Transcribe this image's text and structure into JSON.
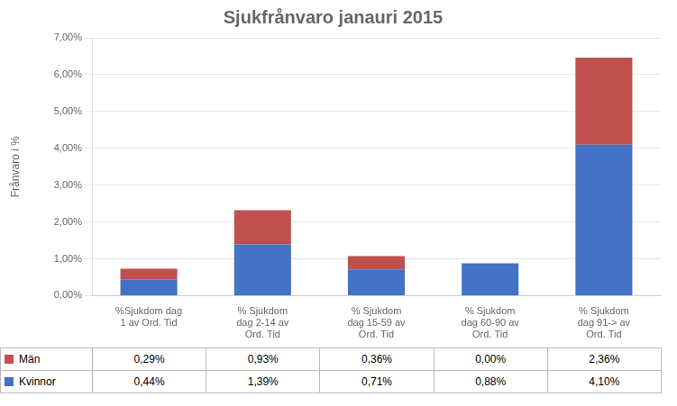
{
  "chart_data": {
    "type": "bar",
    "title": "Sjukfrånvaro janauri 2015",
    "ylabel": "Frånvaro i %",
    "categories": [
      "%Sjukdom dag\n1 av Ord. Tid",
      "% Sjukdom\ndag 2-14 av\nOrd. Tid",
      "% Sjukdom\ndag 15-59 av\nOrd. Tid",
      "% Sjukdom\ndag 60-90 av\nOrd. Tid",
      "% Sjukdom\ndag 91-> av\nOrd. Tid"
    ],
    "series": [
      {
        "name": "Kvinnor",
        "color": "#4472C4",
        "values": [
          0.0044,
          0.0139,
          0.0071,
          0.0088,
          0.041
        ],
        "value_labels": [
          "0,44%",
          "1,39%",
          "0,71%",
          "0,88%",
          "4,10%"
        ]
      },
      {
        "name": "Män",
        "color": "#C0504D",
        "values": [
          0.0029,
          0.0093,
          0.0036,
          0.0,
          0.0236
        ],
        "value_labels": [
          "0,29%",
          "0,93%",
          "0,36%",
          "0,00%",
          "2,36%"
        ]
      }
    ],
    "stacked": true,
    "grid": true,
    "ylim": [
      0,
      0.07
    ],
    "yticks": [
      {
        "value": 0.0,
        "label": "0,00%"
      },
      {
        "value": 0.01,
        "label": "1,00%"
      },
      {
        "value": 0.02,
        "label": "2,00%"
      },
      {
        "value": 0.03,
        "label": "3,00%"
      },
      {
        "value": 0.04,
        "label": "4,00%"
      },
      {
        "value": 0.05,
        "label": "5,00%"
      },
      {
        "value": 0.06,
        "label": "6,00%"
      },
      {
        "value": 0.07,
        "label": "7,00%"
      }
    ]
  }
}
